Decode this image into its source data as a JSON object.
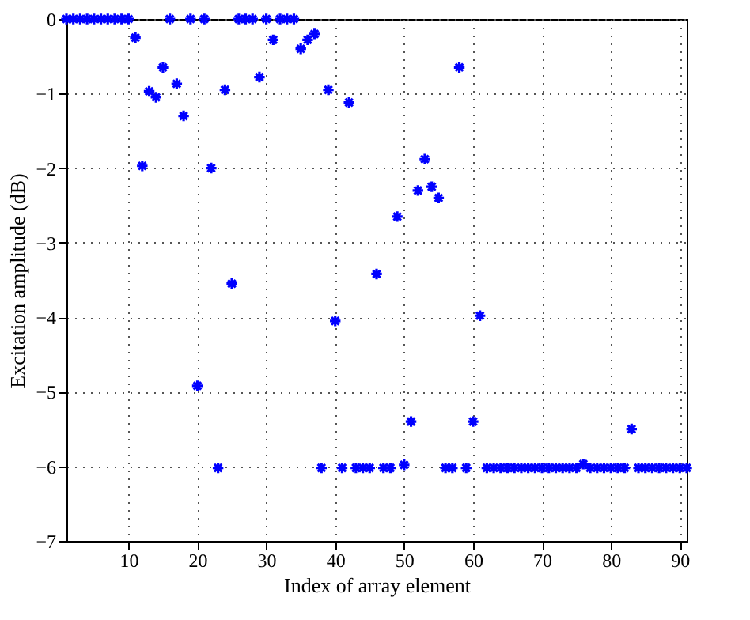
{
  "chart_data": {
    "type": "scatter",
    "xlabel": "Index of array element",
    "ylabel": "Excitation amplitude (dB)",
    "x": [
      1,
      2,
      3,
      4,
      5,
      6,
      7,
      8,
      9,
      10,
      11,
      12,
      13,
      14,
      15,
      16,
      17,
      18,
      19,
      20,
      21,
      22,
      23,
      24,
      25,
      26,
      27,
      28,
      29,
      30,
      31,
      32,
      33,
      34,
      35,
      36,
      37,
      38,
      39,
      40,
      41,
      42,
      43,
      44,
      45,
      46,
      47,
      48,
      49,
      50,
      51,
      52,
      53,
      54,
      55,
      56,
      57,
      58,
      59,
      60,
      61,
      62,
      63,
      64,
      65,
      66,
      67,
      68,
      69,
      70,
      71,
      72,
      73,
      74,
      75,
      76,
      77,
      78,
      79,
      80,
      81,
      82,
      83,
      84,
      85,
      86,
      87,
      88,
      89,
      90,
      91
    ],
    "series": [
      {
        "color": "#0000ff",
        "values": [
          0,
          0,
          0,
          0,
          0,
          0,
          0,
          0,
          0,
          0,
          -0.25,
          -1.97,
          -0.97,
          -1.05,
          -0.65,
          0,
          -0.87,
          -1.3,
          0,
          -4.92,
          0,
          -2.0,
          -6.02,
          -0.95,
          -3.55,
          0,
          0,
          0,
          -0.78,
          0,
          -0.28,
          0,
          0,
          0,
          -0.4,
          -0.28,
          -0.2,
          -6.02,
          -0.95,
          -4.05,
          -6.02,
          -1.12,
          -6.02,
          -6.02,
          -6.02,
          -3.42,
          -6.02,
          -6.02,
          -2.65,
          -5.98,
          -5.4,
          -2.3,
          -1.88,
          -2.25,
          -2.4,
          -6.02,
          -6.02,
          -0.65,
          -6.02,
          -5.4,
          -3.98,
          -6.02,
          -6.02,
          -6.02,
          -6.02,
          -6.02,
          -6.02,
          -6.02,
          -6.02,
          -6.02,
          -6.02,
          -6.02,
          -6.02,
          -6.02,
          -6.02,
          -5.97,
          -6.02,
          -6.02,
          -6.02,
          -6.02,
          -6.02,
          -6.02,
          -5.5,
          -6.02,
          -6.02,
          -6.02,
          -6.02,
          -6.02,
          -6.02,
          -6.02,
          -6.02
        ]
      }
    ],
    "xlim": [
      1,
      91
    ],
    "xticks": [
      10,
      20,
      30,
      40,
      50,
      60,
      70,
      80,
      90
    ],
    "ylim": [
      -7,
      0
    ],
    "yticks": [
      -7,
      -6,
      -5,
      -4,
      -3,
      -2,
      -1,
      0
    ],
    "grid": true,
    "marker": "cross"
  }
}
